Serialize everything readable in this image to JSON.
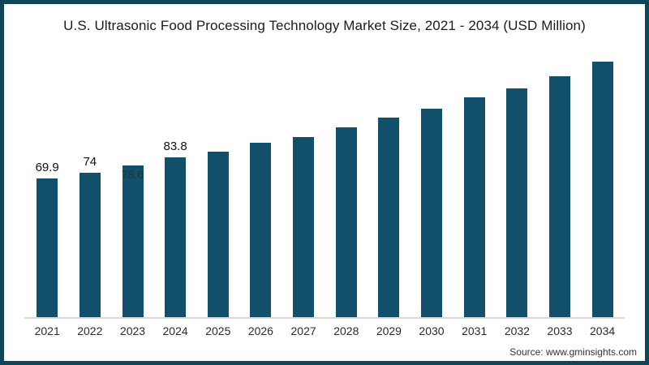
{
  "frame": {
    "border_color": "#0E4659",
    "background": "#FFFFFF"
  },
  "chart_data": {
    "type": "bar",
    "title": "U.S. Ultrasonic Food Processing Technology Market Size, 2021 - 2034 (USD Million)",
    "categories": [
      "2021",
      "2022",
      "2023",
      "2024",
      "2025",
      "2026",
      "2027",
      "2028",
      "2029",
      "2030",
      "2031",
      "2032",
      "2033",
      "2034"
    ],
    "values": [
      69.9,
      74,
      78.6,
      83.8,
      87.7,
      93.6,
      97.3,
      103.7,
      110.4,
      116.0,
      123.5,
      129.4,
      137.4,
      147.1
    ],
    "data_labels": [
      {
        "year": "2021",
        "text": "69.9",
        "position": "above"
      },
      {
        "year": "2022",
        "text": "74",
        "position": "above"
      },
      {
        "year": "2023",
        "text": "78.6",
        "position": "inside-faint"
      },
      {
        "year": "2024",
        "text": "83.8",
        "position": "above"
      }
    ],
    "xlabel": "",
    "ylabel": "",
    "legend": "none",
    "grid": false,
    "bar_color": "#114F6A",
    "axis_line_color": "#D9D9D9"
  },
  "source": {
    "text": "Source: www.gminsights.com"
  }
}
